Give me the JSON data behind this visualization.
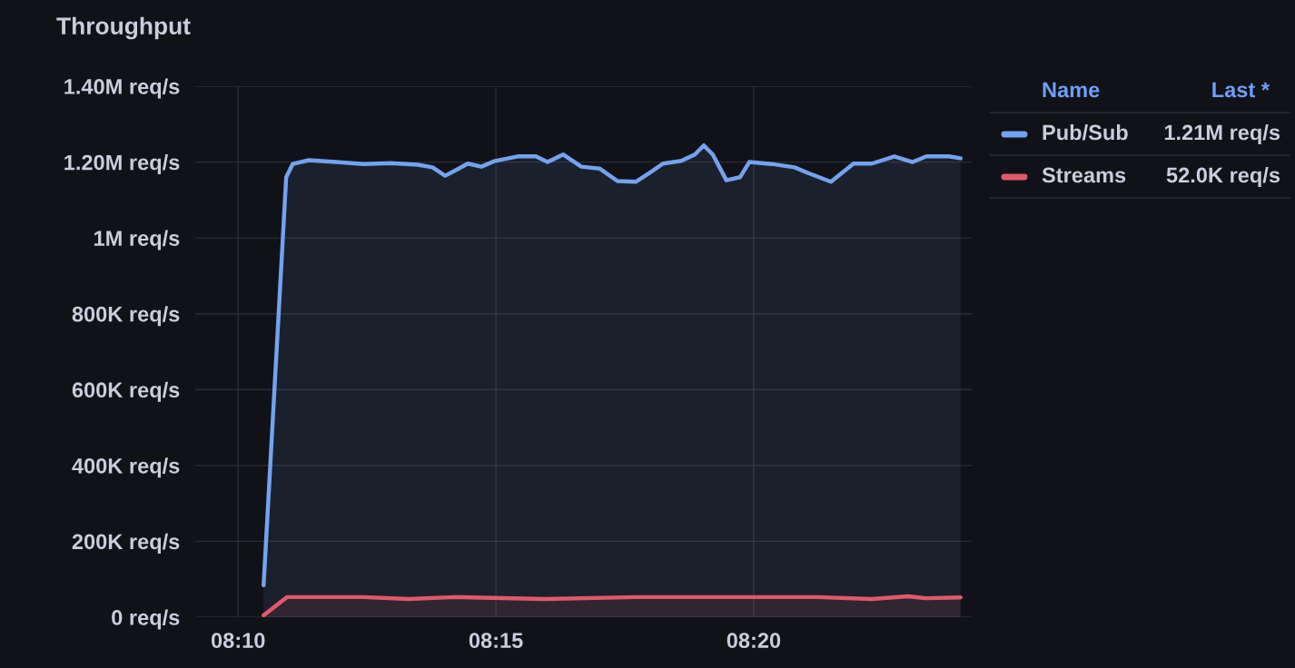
{
  "chart_data": {
    "type": "area",
    "title": "Throughput",
    "series": [
      {
        "name": "Pub/Sub",
        "color": "#73a3ef",
        "x": [
          8.1749,
          8.1822,
          8.1843,
          8.1895,
          8.1984,
          8.2072,
          8.216,
          8.2248,
          8.2295,
          8.2336,
          8.238,
          8.2409,
          8.2453,
          8.2497,
          8.257,
          8.2629,
          8.2667,
          8.2717,
          8.2776,
          8.2835,
          8.2893,
          8.2952,
          8.2996,
          8.304,
          8.3099,
          8.3143,
          8.3172,
          8.3201,
          8.3245,
          8.3289,
          8.3319,
          8.3392,
          8.3465,
          8.351,
          8.3583,
          8.3656,
          8.3715,
          8.3788,
          8.3847,
          8.3891,
          8.3964,
          8.4002
        ],
        "values": [
          84000,
          1160000,
          1195000,
          1205000,
          1200000,
          1195000,
          1197000,
          1193000,
          1186000,
          1164000,
          1183000,
          1196000,
          1188000,
          1203000,
          1215000,
          1215000,
          1200000,
          1220000,
          1188000,
          1183000,
          1150000,
          1148000,
          1171000,
          1196000,
          1203000,
          1220000,
          1244000,
          1220000,
          1152000,
          1160000,
          1200000,
          1195000,
          1186000,
          1171000,
          1148000,
          1196000,
          1196000,
          1215000,
          1200000,
          1215000,
          1215000,
          1210000
        ]
      },
      {
        "name": "Streams",
        "color": "#e0596b",
        "x": [
          8.1749,
          8.1825,
          8.2072,
          8.2218,
          8.2365,
          8.2658,
          8.2952,
          8.3245,
          8.3538,
          8.3715,
          8.3832,
          8.3891,
          8.4002
        ],
        "values": [
          5000,
          53000,
          53000,
          48000,
          53000,
          48000,
          53000,
          53000,
          53000,
          48000,
          55000,
          50000,
          52000
        ]
      }
    ],
    "xlim": [
      8.1528,
      8.4038
    ],
    "xticks": [
      {
        "value": 8.16667,
        "label": "08:10"
      },
      {
        "value": 8.25,
        "label": "08:15"
      },
      {
        "value": 8.33333,
        "label": "08:20"
      }
    ],
    "ylim": [
      0,
      1400000
    ],
    "yticks": [
      {
        "value": 0,
        "label": "0 req/s"
      },
      {
        "value": 200000,
        "label": "200K req/s"
      },
      {
        "value": 400000,
        "label": "400K req/s"
      },
      {
        "value": 600000,
        "label": "600K req/s"
      },
      {
        "value": 800000,
        "label": "800K req/s"
      },
      {
        "value": 1000000,
        "label": "1M req/s"
      },
      {
        "value": 1200000,
        "label": "1.20M req/s"
      },
      {
        "value": 1400000,
        "label": "1.40M req/s"
      }
    ],
    "grid": true,
    "legend": "right",
    "annotations": [
      "Name",
      "Last *",
      "1.21M req/s",
      "52.0K req/s"
    ]
  }
}
